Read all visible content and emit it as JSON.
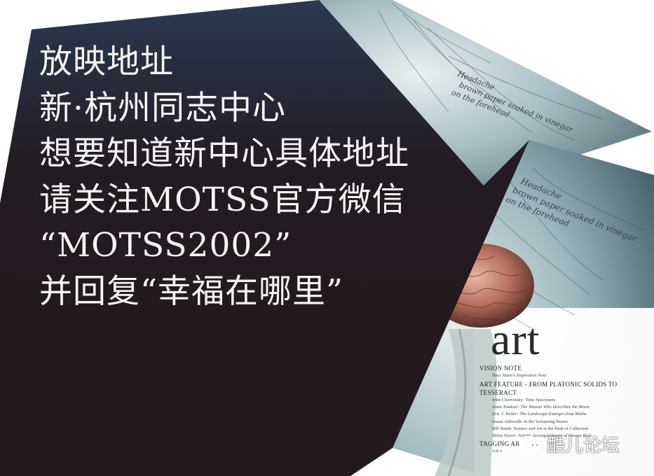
{
  "announcement": {
    "lines": [
      "放映地址",
      "新·杭州同志中心",
      "想要知道新中心具体地址",
      "请关注MOTSS官方微信",
      "“MOTSS2002”",
      "并回复“幸福在哪里”"
    ]
  },
  "art_page": {
    "title_fragment": "art",
    "sections": [
      {
        "heading": "VISION NOTE",
        "items": [
          "Tono Stano's Inspiration Note"
        ]
      },
      {
        "heading": "ART FEATURE - FROM PLATONIC SOLIDS TO TESSERACT",
        "items": [
          "John Chervinsky: Time Specimens",
          "Anan Tondeur: The Woman Who Describes the Moon",
          "Eric J. Heller: The Landscape Emerges from Maths",
          "Susan Aldworth: In the Screaming Brains",
          "Bill Smith: Science and Art at the Peak of Collection",
          "Helen Pynor: Artistic Accomplishment of Human Body"
        ]
      },
      {
        "heading": "TAGGING AR",
        "items": [
          "3-4-3"
        ]
      }
    ]
  },
  "handwriting": {
    "upper": [
      "Headache",
      "brown paper soaked in vinegar",
      "on the forehead"
    ],
    "lower": [
      "Headache",
      "brown paper soaked in vinegar",
      "on the forehead"
    ]
  },
  "watermark": {
    "text": "酷儿论坛",
    "icon": "wechat-icon"
  },
  "colors": {
    "panel": "#231a1e",
    "text": "#f6f4f5",
    "page_bg": "#ffffff",
    "image_tint": "#7fa3ab"
  }
}
